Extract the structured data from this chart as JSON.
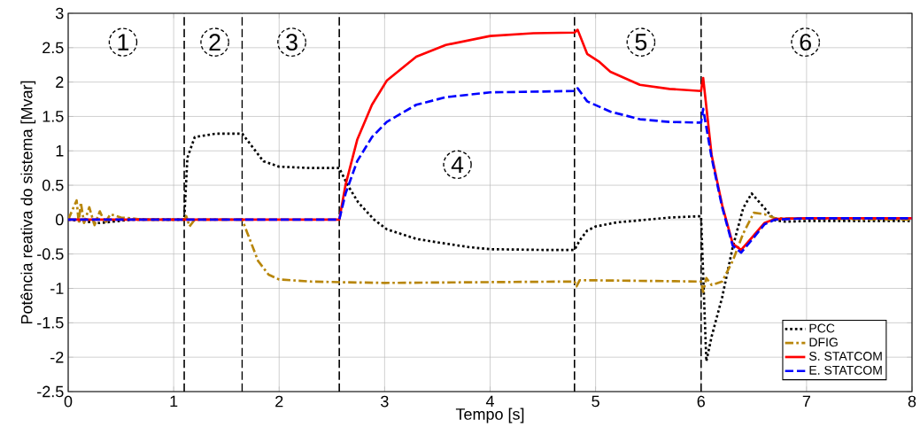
{
  "chart_data": {
    "type": "line",
    "xlabel": "Tempo [s]",
    "ylabel": "Potência reativa do sistema [Mvar]",
    "xlim": [
      0,
      8
    ],
    "ylim": [
      -2.5,
      3
    ],
    "xticks": [
      0,
      1,
      2,
      3,
      4,
      5,
      6,
      7,
      8
    ],
    "yticks": [
      -2.5,
      -2,
      -1.5,
      -1,
      -0.5,
      0,
      0.5,
      1,
      1.5,
      2,
      2.5,
      3
    ],
    "grid": true,
    "legend": "bottom right",
    "marker": "none",
    "series": [
      {
        "name": "PCC",
        "color": "#000000",
        "line_style": "dotted",
        "x": [
          0,
          0.3,
          0.6,
          1.1,
          1.13,
          1.2,
          1.4,
          1.65,
          1.75,
          1.85,
          2.0,
          2.3,
          2.57,
          2.65,
          2.75,
          2.9,
          3.02,
          3.3,
          3.5,
          3.8,
          4.0,
          4.5,
          4.8,
          4.85,
          4.92,
          5.0,
          5.2,
          5.42,
          5.7,
          6.0,
          6.05,
          6.1,
          6.2,
          6.3,
          6.4,
          6.48,
          6.6,
          6.7,
          6.8,
          7.0,
          8.0
        ],
        "values": [
          0,
          -0.05,
          0,
          0,
          0.9,
          1.2,
          1.25,
          1.25,
          1.05,
          0.85,
          0.77,
          0.75,
          0.75,
          0.5,
          0.25,
          0.0,
          -0.14,
          -0.28,
          -0.33,
          -0.4,
          -0.43,
          -0.44,
          -0.44,
          -0.3,
          -0.16,
          -0.1,
          -0.04,
          -0.01,
          0.03,
          0.05,
          -2.06,
          -1.7,
          -1.13,
          -0.4,
          0.17,
          0.38,
          0.17,
          -0.01,
          -0.03,
          -0.02,
          -0.02
        ]
      },
      {
        "name": "DFIG",
        "color": "#b8860b",
        "line_style": "dashdot",
        "x": [
          0,
          0.08,
          0.1,
          0.12,
          0.15,
          0.2,
          0.25,
          0.3,
          0.35,
          0.4,
          0.5,
          0.6,
          0.7,
          1.1,
          1.12,
          1.15,
          1.2,
          1.65,
          1.7,
          1.8,
          1.9,
          2.0,
          2.3,
          2.6,
          3.0,
          4.8,
          4.82,
          4.85,
          6.0,
          6.02,
          6.05,
          6.1,
          6.2,
          6.3,
          6.4,
          6.5,
          6.6,
          6.7,
          8.0
        ],
        "values": [
          0,
          0.28,
          -0.05,
          0.25,
          -0.05,
          0.18,
          -0.08,
          0.12,
          -0.05,
          0.08,
          0.03,
          0.02,
          0,
          0,
          0.05,
          -0.1,
          0,
          0,
          -0.2,
          -0.6,
          -0.8,
          -0.87,
          -0.9,
          -0.91,
          -0.92,
          -0.9,
          -0.97,
          -0.88,
          -0.9,
          -1.05,
          -0.85,
          -0.95,
          -0.9,
          -0.6,
          -0.2,
          0.1,
          0.08,
          0.02,
          0
        ]
      },
      {
        "name": "S. STATCOM",
        "color": "#ff0000",
        "line_style": "solid",
        "x": [
          0,
          2.57,
          2.63,
          2.74,
          2.88,
          3.02,
          3.3,
          3.58,
          4.0,
          4.41,
          4.8,
          4.83,
          4.92,
          5.03,
          5.14,
          5.42,
          5.7,
          6.0,
          6.02,
          6.1,
          6.2,
          6.3,
          6.38,
          6.5,
          6.6,
          6.7,
          7.0,
          8.0
        ],
        "values": [
          0,
          0,
          0.51,
          1.16,
          1.67,
          2.02,
          2.37,
          2.54,
          2.67,
          2.71,
          2.72,
          2.76,
          2.41,
          2.3,
          2.15,
          1.96,
          1.9,
          1.87,
          2.06,
          0.94,
          0.21,
          -0.35,
          -0.44,
          -0.23,
          -0.05,
          0.01,
          0.02,
          0.02
        ]
      },
      {
        "name": "E. STATCOM",
        "color": "#0000ff",
        "line_style": "dashed",
        "x": [
          0,
          2.57,
          2.63,
          2.74,
          2.88,
          3.02,
          3.3,
          3.58,
          4.0,
          4.8,
          4.83,
          4.92,
          5.14,
          5.42,
          5.7,
          6.0,
          6.02,
          6.1,
          6.2,
          6.3,
          6.38,
          6.5,
          6.6,
          6.7,
          7.0,
          8.0
        ],
        "values": [
          0,
          0,
          0.38,
          0.85,
          1.2,
          1.42,
          1.67,
          1.78,
          1.85,
          1.87,
          1.91,
          1.72,
          1.57,
          1.46,
          1.42,
          1.41,
          1.61,
          0.9,
          0.18,
          -0.38,
          -0.48,
          -0.26,
          -0.07,
          0.0,
          0.02,
          0.02
        ]
      }
    ],
    "ref_lines": [
      {
        "axis": "x",
        "value": 1.1,
        "color": "#000000",
        "line_style": "dashed"
      },
      {
        "axis": "x",
        "value": 1.65,
        "color": "#000000",
        "line_style": "dashed"
      },
      {
        "axis": "x",
        "value": 2.57,
        "color": "#000000",
        "line_style": "dashed"
      },
      {
        "axis": "x",
        "value": 4.8,
        "color": "#000000",
        "line_style": "dashed"
      },
      {
        "axis": "x",
        "value": 6.0,
        "color": "#000000",
        "line_style": "dashed"
      }
    ],
    "annotations": [
      {
        "text": "1",
        "x": 0.52,
        "y": 2.58
      },
      {
        "text": "2",
        "x": 1.39,
        "y": 2.58
      },
      {
        "text": "3",
        "x": 2.12,
        "y": 2.58
      },
      {
        "text": "4",
        "x": 3.69,
        "y": 0.8
      },
      {
        "text": "5",
        "x": 5.43,
        "y": 2.58
      },
      {
        "text": "6",
        "x": 6.99,
        "y": 2.58
      }
    ]
  }
}
